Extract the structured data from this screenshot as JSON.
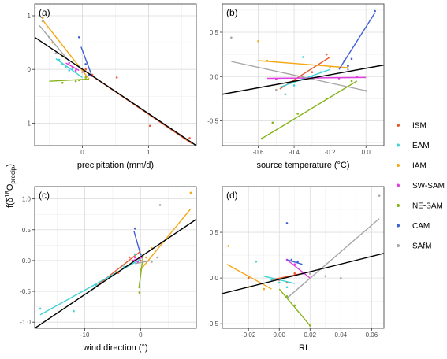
{
  "figure": {
    "ylabel": "f(δ¹⁸Oₚᵣₑ꜀ᵢₚ)",
    "ylabel_base": "f(δ",
    "ylabel_sup": "18",
    "ylabel_mid": "O",
    "ylabel_sub": "precip",
    "ylabel_end": ")"
  },
  "legend": {
    "items": [
      {
        "name": "ISM",
        "color": "#e8582d"
      },
      {
        "name": "EAM",
        "color": "#3ed3d8"
      },
      {
        "name": "IAM",
        "color": "#f3a712"
      },
      {
        "name": "SW-SAM",
        "color": "#e33ee0"
      },
      {
        "name": "NE-SAM",
        "color": "#86b41a"
      },
      {
        "name": "CAM",
        "color": "#3f5fd4"
      },
      {
        "name": "SAfM",
        "color": "#a6a6a6"
      }
    ]
  },
  "chart_data": [
    {
      "type": "scatter",
      "panel": "(a)",
      "xlabel": "precipitation (mm/d)",
      "ylabel": "",
      "xlim": [
        -0.72,
        1.72
      ],
      "ylim": [
        -1.42,
        1.22
      ],
      "xticks": [
        0,
        1
      ],
      "yticks": [
        -1,
        0,
        1
      ],
      "grid": true,
      "overall_fit": [
        [
          -0.72,
          0.6
        ],
        [
          1.72,
          -1.42
        ]
      ],
      "series": [
        {
          "name": "ISM",
          "points": [
            [
              0.52,
              -0.15
            ],
            [
              1.02,
              -1.05
            ],
            [
              1.62,
              -1.28
            ],
            [
              0.15,
              -0.1
            ],
            [
              0.05,
              0.0
            ]
          ],
          "fit": [
            [
              0.0,
              0.0
            ],
            [
              1.65,
              -1.38
            ]
          ]
        },
        {
          "name": "EAM",
          "points": [
            [
              -0.35,
              0.18
            ],
            [
              -0.25,
              0.05
            ],
            [
              -0.3,
              0.1
            ],
            [
              -0.2,
              -0.02
            ],
            [
              -0.15,
              0.0
            ],
            [
              -0.1,
              -0.05
            ]
          ],
          "fit": [
            [
              -0.4,
              0.2
            ],
            [
              0.0,
              -0.15
            ]
          ]
        },
        {
          "name": "IAM",
          "points": [
            [
              -0.6,
              0.96
            ],
            [
              -0.45,
              0.5
            ],
            [
              -0.3,
              0.25
            ],
            [
              0.05,
              -0.15
            ]
          ],
          "fit": [
            [
              -0.6,
              0.92
            ],
            [
              0.1,
              -0.18
            ]
          ]
        },
        {
          "name": "SW-SAM",
          "points": [
            [
              -0.2,
              0.12
            ],
            [
              -0.15,
              0.05
            ],
            [
              -0.1,
              -0.02
            ]
          ],
          "fit": [
            [
              -0.25,
              0.12
            ],
            [
              -0.05,
              -0.02
            ]
          ]
        },
        {
          "name": "NE-SAM",
          "points": [
            [
              -0.3,
              -0.25
            ],
            [
              -0.05,
              -0.2
            ],
            [
              -0.1,
              -0.22
            ],
            [
              0.05,
              -0.15
            ]
          ],
          "fit": [
            [
              -0.5,
              -0.22
            ],
            [
              0.1,
              -0.18
            ]
          ]
        },
        {
          "name": "CAM",
          "points": [
            [
              -0.05,
              0.6
            ],
            [
              0.05,
              0.1
            ],
            [
              0.1,
              -0.1
            ]
          ],
          "fit": [
            [
              -0.02,
              0.42
            ],
            [
              0.15,
              -0.14
            ]
          ]
        },
        {
          "name": "SAfM",
          "points": [
            [
              -0.72,
              1.15
            ],
            [
              -0.6,
              0.9
            ],
            [
              -0.5,
              0.6
            ],
            [
              -0.4,
              0.3
            ],
            [
              -0.05,
              0.05
            ],
            [
              0.0,
              -0.05
            ]
          ],
          "fit": [
            [
              -0.65,
              0.82
            ],
            [
              -0.2,
              0.15
            ]
          ]
        }
      ]
    },
    {
      "type": "scatter",
      "panel": "(b)",
      "xlabel": "source temperature (°C)",
      "ylabel": "",
      "xlim": [
        -0.8,
        0.1
      ],
      "ylim": [
        -0.78,
        0.82
      ],
      "xticks": [
        -0.6,
        -0.4,
        -0.2,
        0.0
      ],
      "yticks": [
        -0.5,
        0.0,
        0.5
      ],
      "grid": true,
      "overall_fit": [
        [
          -0.8,
          -0.2
        ],
        [
          0.1,
          0.13
        ]
      ],
      "series": [
        {
          "name": "ISM",
          "points": [
            [
              -0.45,
              -0.2
            ],
            [
              -0.22,
              0.25
            ],
            [
              -0.3,
              0.05
            ],
            [
              -0.4,
              -0.05
            ]
          ],
          "fit": [
            [
              -0.48,
              -0.14
            ],
            [
              -0.2,
              0.22
            ]
          ]
        },
        {
          "name": "EAM",
          "points": [
            [
              -0.35,
              0.22
            ],
            [
              -0.45,
              -0.2
            ],
            [
              -0.4,
              -0.1
            ],
            [
              -0.3,
              0.0
            ],
            [
              -0.25,
              0.05
            ]
          ],
          "fit": [
            [
              -0.48,
              -0.12
            ],
            [
              -0.2,
              0.08
            ]
          ]
        },
        {
          "name": "IAM",
          "points": [
            [
              -0.6,
              0.4
            ],
            [
              -0.55,
              0.18
            ],
            [
              -0.2,
              0.1
            ],
            [
              -0.1,
              0.12
            ]
          ],
          "fit": [
            [
              -0.6,
              0.18
            ],
            [
              -0.1,
              0.1
            ]
          ]
        },
        {
          "name": "SW-SAM",
          "points": [
            [
              -0.5,
              -0.03
            ],
            [
              -0.3,
              -0.02
            ],
            [
              -0.15,
              -0.02
            ],
            [
              -0.05,
              0.0
            ]
          ],
          "fit": [
            [
              -0.55,
              -0.02
            ],
            [
              0.0,
              -0.01
            ]
          ]
        },
        {
          "name": "NE-SAM",
          "points": [
            [
              -0.58,
              -0.7
            ],
            [
              -0.38,
              -0.42
            ],
            [
              -0.52,
              -0.52
            ],
            [
              -0.22,
              -0.25
            ],
            [
              -0.08,
              -0.05
            ]
          ],
          "fit": [
            [
              -0.58,
              -0.7
            ],
            [
              -0.05,
              -0.05
            ]
          ]
        },
        {
          "name": "CAM",
          "points": [
            [
              0.05,
              0.74
            ],
            [
              -0.12,
              0.18
            ],
            [
              -0.1,
              0.12
            ],
            [
              -0.08,
              0.2
            ]
          ],
          "fit": [
            [
              -0.15,
              0.08
            ],
            [
              0.05,
              0.72
            ]
          ]
        },
        {
          "name": "SAfM",
          "points": [
            [
              -0.75,
              0.44
            ],
            [
              -0.5,
              -0.15
            ],
            [
              -0.35,
              0.0
            ],
            [
              -0.1,
              0.08
            ],
            [
              0.0,
              -0.16
            ]
          ],
          "fit": [
            [
              -0.75,
              0.17
            ],
            [
              0.0,
              -0.16
            ]
          ]
        }
      ]
    },
    {
      "type": "scatter",
      "panel": "(c)",
      "xlabel": "wind direction (°)",
      "ylabel": "",
      "xlim": [
        -19,
        10
      ],
      "ylim": [
        -1.1,
        1.2
      ],
      "xticks": [
        -10,
        0
      ],
      "yticks": [
        -1.0,
        -0.5,
        0.0,
        0.5,
        1.0
      ],
      "grid": true,
      "overall_fit": [
        [
          -19,
          -1.1
        ],
        [
          10,
          0.67
        ]
      ],
      "series": [
        {
          "name": "ISM",
          "points": [
            [
              -8,
              -0.4
            ],
            [
              -4,
              -0.2
            ],
            [
              -2,
              0.05
            ],
            [
              -1,
              0.1
            ],
            [
              0,
              0.0
            ]
          ],
          "fit": [
            [
              -8,
              -0.42
            ],
            [
              0,
              0.15
            ]
          ]
        },
        {
          "name": "EAM",
          "points": [
            [
              -18,
              -0.78
            ],
            [
              -12,
              -0.82
            ],
            [
              -8,
              -0.4
            ],
            [
              -3,
              -0.1
            ],
            [
              -1,
              0.1
            ]
          ],
          "fit": [
            [
              -18,
              -0.88
            ],
            [
              0,
              0.02
            ]
          ]
        },
        {
          "name": "IAM",
          "points": [
            [
              9,
              1.1
            ],
            [
              4,
              0.3
            ],
            [
              2,
              0.2
            ],
            [
              1,
              0.05
            ]
          ],
          "fit": [
            [
              0,
              -0.15
            ],
            [
              9,
              0.84
            ]
          ]
        },
        {
          "name": "SW-SAM",
          "points": [
            [
              -1,
              0.05
            ],
            [
              -0.5,
              -0.02
            ],
            [
              0,
              0.1
            ]
          ],
          "fit": [
            [
              -1.5,
              0.0
            ],
            [
              0.5,
              0.05
            ]
          ]
        },
        {
          "name": "NE-SAM",
          "points": [
            [
              -0.2,
              -0.52
            ],
            [
              0,
              -0.15
            ],
            [
              0.5,
              0.1
            ]
          ],
          "fit": [
            [
              -0.3,
              -0.45
            ],
            [
              0.5,
              0.1
            ]
          ]
        },
        {
          "name": "CAM",
          "points": [
            [
              -1,
              0.52
            ],
            [
              0,
              0.1
            ]
          ],
          "fit": [
            [
              -1.2,
              0.48
            ],
            [
              0,
              0.1
            ]
          ]
        },
        {
          "name": "SAfM",
          "points": [
            [
              3.5,
              0.9
            ],
            [
              3,
              0.05
            ],
            [
              2,
              -0.02
            ]
          ],
          "fit": [
            [
              -1,
              -0.05
            ],
            [
              2,
              0.0
            ]
          ]
        }
      ]
    },
    {
      "type": "scatter",
      "panel": "(d)",
      "xlabel": "RI",
      "ylabel": "",
      "xlim": [
        -0.037,
        0.068
      ],
      "ylim": [
        -0.55,
        1.0
      ],
      "xticks": [
        -0.02,
        0.0,
        0.02,
        0.04,
        0.06
      ],
      "yticks": [
        -0.5,
        0.0,
        0.5
      ],
      "grid": true,
      "overall_fit": [
        [
          -0.037,
          -0.17
        ],
        [
          0.068,
          0.27
        ]
      ],
      "series": [
        {
          "name": "ISM",
          "points": [
            [
              -0.02,
              0.0
            ],
            [
              0.0,
              -0.02
            ],
            [
              0.01,
              0.05
            ],
            [
              0.005,
              -0.05
            ]
          ],
          "fit": [
            [
              -0.005,
              -0.02
            ],
            [
              0.015,
              0.05
            ]
          ]
        },
        {
          "name": "EAM",
          "points": [
            [
              -0.015,
              0.18
            ],
            [
              -0.005,
              -0.02
            ],
            [
              0.0,
              -0.05
            ],
            [
              0.005,
              -0.1
            ]
          ],
          "fit": [
            [
              -0.01,
              0.02
            ],
            [
              0.01,
              -0.06
            ]
          ]
        },
        {
          "name": "IAM",
          "points": [
            [
              -0.033,
              0.35
            ],
            [
              -0.02,
              -0.1
            ],
            [
              -0.01,
              -0.12
            ]
          ],
          "fit": [
            [
              -0.034,
              0.15
            ],
            [
              -0.005,
              -0.12
            ]
          ]
        },
        {
          "name": "SW-SAM",
          "points": [
            [
              0.005,
              0.2
            ],
            [
              0.01,
              0.15
            ],
            [
              0.015,
              0.05
            ],
            [
              0.02,
              0.05
            ]
          ],
          "fit": [
            [
              0.005,
              0.2
            ],
            [
              0.02,
              0.0
            ]
          ]
        },
        {
          "name": "NE-SAM",
          "points": [
            [
              0.02,
              -0.52
            ],
            [
              0.01,
              -0.3
            ],
            [
              0.005,
              -0.2
            ]
          ],
          "fit": [
            [
              0.0,
              -0.12
            ],
            [
              0.02,
              -0.52
            ]
          ]
        },
        {
          "name": "CAM",
          "points": [
            [
              0.005,
              0.6
            ],
            [
              0.008,
              0.2
            ],
            [
              0.012,
              0.18
            ]
          ],
          "fit": [
            [
              0.005,
              0.2
            ],
            [
              0.015,
              0.15
            ]
          ]
        },
        {
          "name": "SAfM",
          "points": [
            [
              0.065,
              0.9
            ],
            [
              0.04,
              0.0
            ],
            [
              0.03,
              0.02
            ],
            [
              0.02,
              0.05
            ]
          ],
          "fit": [
            [
              0.005,
              -0.22
            ],
            [
              0.065,
              0.65
            ]
          ]
        }
      ]
    }
  ]
}
